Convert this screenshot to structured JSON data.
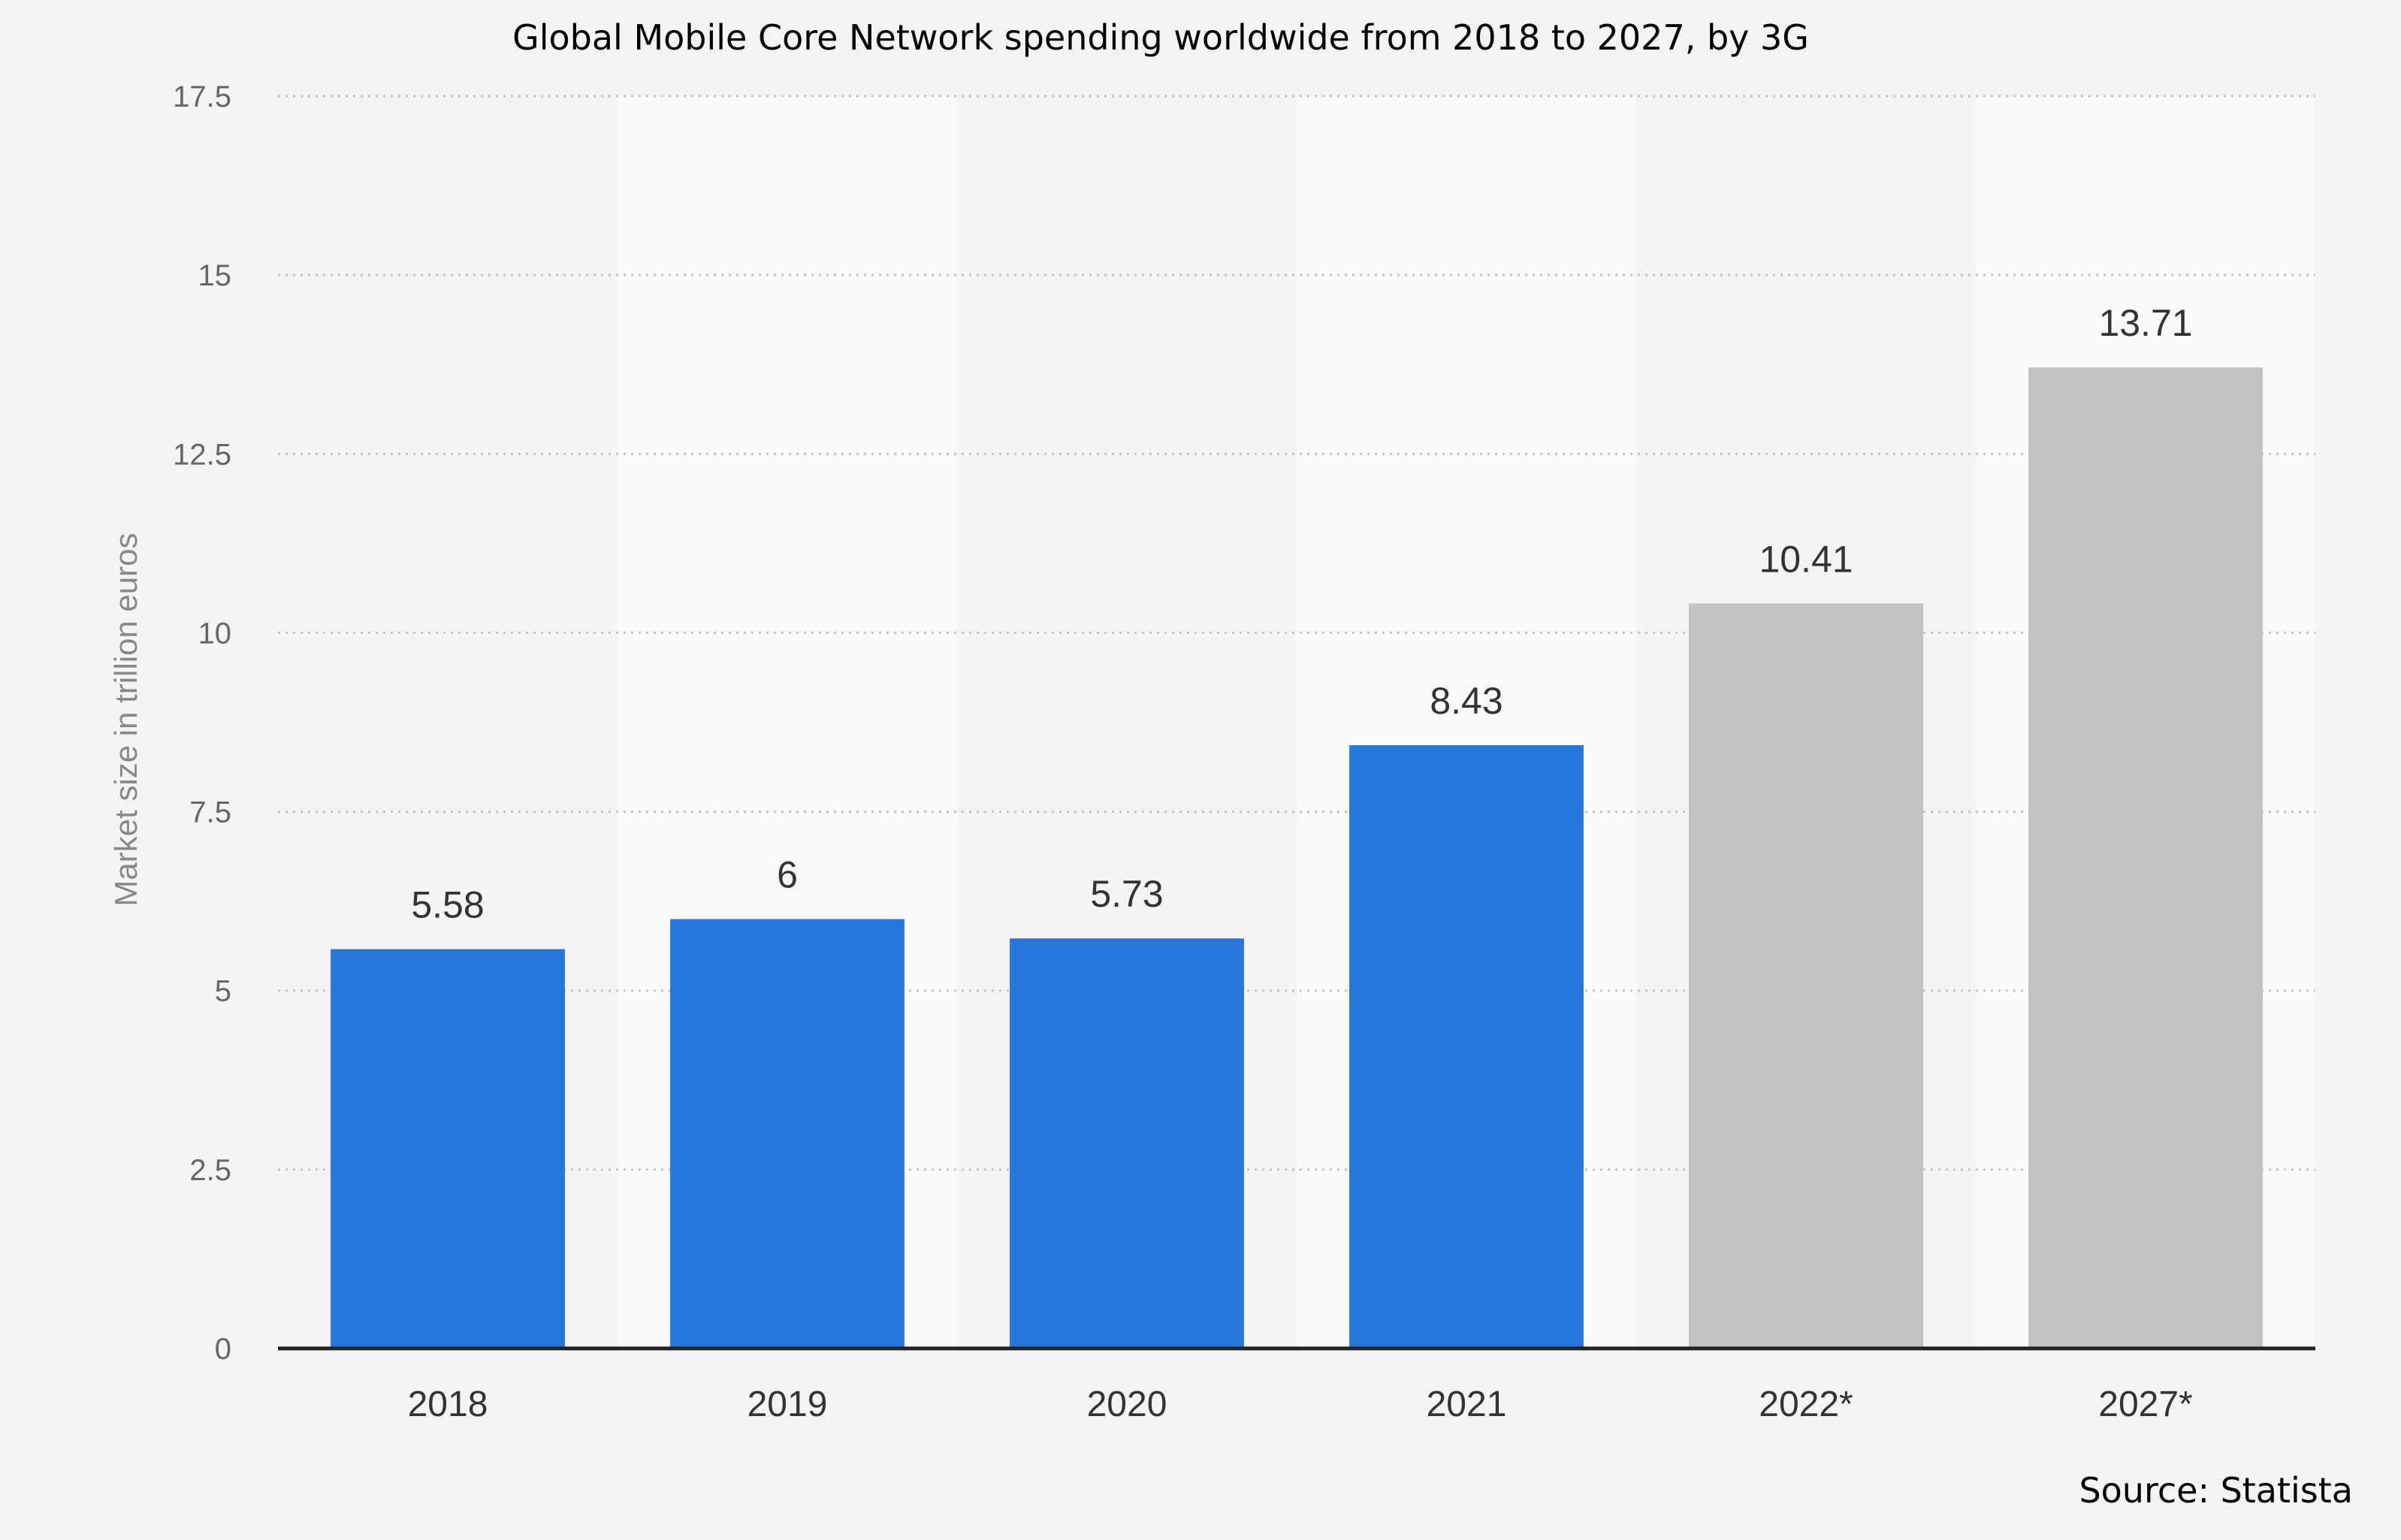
{
  "chart_data": {
    "type": "bar",
    "title": "Global Mobile Core Network spending worldwide from 2018 to 2027, by 3G",
    "ylabel": "Market size in trillion euros",
    "xlabel": "",
    "source": "Source: Statista",
    "categories": [
      "2018",
      "2019",
      "2020",
      "2021",
      "2022*",
      "2027*"
    ],
    "values": [
      5.58,
      6,
      5.73,
      8.43,
      10.41,
      13.71
    ],
    "value_labels": [
      "5.58",
      "6",
      "5.73",
      "8.43",
      "10.41",
      "13.71"
    ],
    "bar_colors": [
      "#2776dc",
      "#2776dc",
      "#2776dc",
      "#2776dc",
      "#c2c2c2",
      "#c2c2c2"
    ],
    "yticks": [
      "0",
      "2.5",
      "5",
      "7.5",
      "10",
      "12.5",
      "15",
      "17.5"
    ],
    "ylim": [
      0,
      17.5
    ],
    "grid": true,
    "legend": "none",
    "colors": {
      "actual": "#2776dc",
      "forecast": "#c2c2c2",
      "background": "#f4f4f4",
      "band": "#fafafa"
    }
  }
}
